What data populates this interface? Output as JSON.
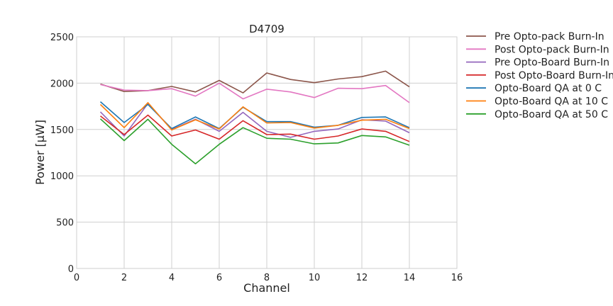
{
  "chart_data": {
    "type": "line",
    "title": "D4709",
    "xlabel": "Channel",
    "ylabel": "Power [μW]",
    "xlim": [
      0,
      16
    ],
    "ylim": [
      0,
      2500
    ],
    "xticks": [
      0,
      2,
      4,
      6,
      8,
      10,
      12,
      14,
      16
    ],
    "yticks": [
      0,
      500,
      1000,
      1500,
      2000,
      2500
    ],
    "grid": true,
    "legend_position": "outside-right",
    "x": [
      1,
      2,
      3,
      4,
      5,
      6,
      7,
      8,
      9,
      10,
      11,
      12,
      13,
      14
    ],
    "series": [
      {
        "name": "Pre Opto-pack Burn-In",
        "color": "#8c564b",
        "values": [
          1990,
          1910,
          1920,
          1965,
          1905,
          2030,
          1895,
          2110,
          2040,
          2005,
          2045,
          2070,
          2130,
          1960
        ]
      },
      {
        "name": "Post Opto-pack Burn-In",
        "color": "#e377c2",
        "values": [
          1985,
          1925,
          1920,
          1940,
          1860,
          2000,
          1830,
          1935,
          1905,
          1845,
          1945,
          1940,
          1975,
          1790
        ]
      },
      {
        "name": "Pre Opto-Board Burn-In",
        "color": "#9467bd",
        "values": [
          1690,
          1430,
          1780,
          1500,
          1610,
          1480,
          1685,
          1480,
          1415,
          1480,
          1505,
          1605,
          1590,
          1465
        ]
      },
      {
        "name": "Post Opto-Board Burn-In",
        "color": "#d62728",
        "values": [
          1645,
          1445,
          1655,
          1430,
          1495,
          1395,
          1595,
          1445,
          1450,
          1395,
          1430,
          1505,
          1480,
          1370
        ]
      },
      {
        "name": "Opto-Board QA at 0 C",
        "color": "#1f77b4",
        "values": [
          1800,
          1575,
          1770,
          1510,
          1635,
          1510,
          1740,
          1585,
          1585,
          1525,
          1545,
          1630,
          1635,
          1520
        ]
      },
      {
        "name": "Opto-Board QA at 10 C",
        "color": "#ff7f0e",
        "values": [
          1770,
          1520,
          1790,
          1495,
          1605,
          1505,
          1745,
          1570,
          1575,
          1515,
          1545,
          1600,
          1610,
          1510
        ]
      },
      {
        "name": "Opto-Board QA at 50 C",
        "color": "#2ca02c",
        "values": [
          1615,
          1380,
          1610,
          1340,
          1130,
          1340,
          1520,
          1405,
          1395,
          1345,
          1355,
          1435,
          1420,
          1330
        ]
      }
    ]
  }
}
